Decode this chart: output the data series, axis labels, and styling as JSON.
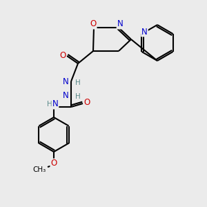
{
  "bg_color": "#ebebeb",
  "atom_colors": {
    "C": "#000000",
    "N": "#0000cc",
    "O": "#cc0000",
    "H": "#5a8a8a"
  },
  "bond_color": "#000000",
  "bond_width": 1.5,
  "font_size_atom": 8.5,
  "font_size_H": 7.5
}
